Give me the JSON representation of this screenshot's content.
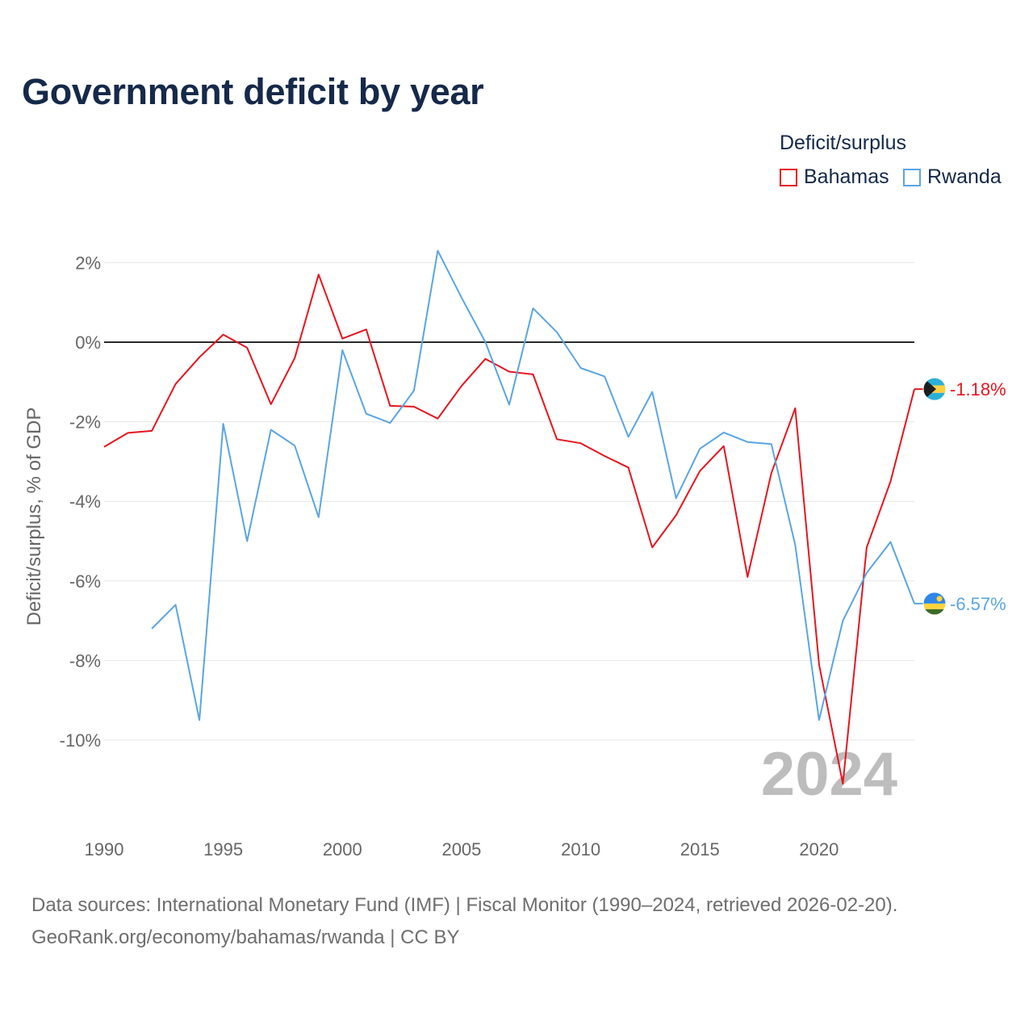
{
  "chart_data": {
    "type": "line",
    "title": "Government deficit by year",
    "xlabel": "",
    "ylabel": "Deficit/surplus, % of GDP",
    "xlim": [
      1990,
      2024
    ],
    "ylim": [
      -12,
      3
    ],
    "x_ticks": [
      1990,
      1995,
      2000,
      2005,
      2010,
      2015,
      2020
    ],
    "x_tick_labels": [
      "1990",
      "1995",
      "2000",
      "2005",
      "2010",
      "2015",
      "2020"
    ],
    "y_ticks": [
      2,
      0,
      -2,
      -4,
      -6,
      -8,
      -10
    ],
    "y_tick_labels": [
      "2%",
      "0%",
      "-2%",
      "-4%",
      "-6%",
      "-8%",
      "-10%"
    ],
    "legend_title": "Deficit/surplus",
    "legend_position": "top-right",
    "year_label": "2024",
    "series": [
      {
        "name": "Bahamas",
        "color": "#e8141e",
        "end_label": "-1.18%",
        "x": [
          1990,
          1991,
          1992,
          1993,
          1994,
          1995,
          1996,
          1997,
          1998,
          1999,
          2000,
          2001,
          2002,
          2003,
          2004,
          2005,
          2006,
          2007,
          2008,
          2009,
          2010,
          2011,
          2012,
          2013,
          2014,
          2015,
          2016,
          2017,
          2018,
          2019,
          2020,
          2021,
          2022,
          2023,
          2024
        ],
        "values": [
          -2.63,
          -2.28,
          -2.23,
          -1.05,
          -0.38,
          0.19,
          -0.14,
          -1.56,
          -0.4,
          1.7,
          0.09,
          0.32,
          -1.6,
          -1.62,
          -1.92,
          -1.1,
          -0.42,
          -0.74,
          -0.81,
          -2.44,
          -2.54,
          -2.86,
          -3.15,
          -5.16,
          -4.35,
          -3.24,
          -2.61,
          -5.9,
          -3.29,
          -1.66,
          -8.1,
          -11.1,
          -5.16,
          -3.5,
          -1.18
        ]
      },
      {
        "name": "Rwanda",
        "color": "#5aa5e5",
        "end_label": "-6.57%",
        "x": [
          1992,
          1993,
          1994,
          1995,
          1996,
          1997,
          1998,
          1999,
          2000,
          2001,
          2002,
          2003,
          2004,
          2005,
          2006,
          2007,
          2008,
          2009,
          2010,
          2011,
          2012,
          2013,
          2014,
          2015,
          2016,
          2017,
          2018,
          2019,
          2020,
          2021,
          2022,
          2023,
          2024
        ],
        "values": [
          -7.2,
          -6.6,
          -9.5,
          -2.05,
          -5,
          -2.2,
          -2.6,
          -4.4,
          -0.2,
          -1.8,
          -2.03,
          -1.22,
          2.3,
          1.12,
          0,
          -1.57,
          0.85,
          0.25,
          -0.65,
          -0.86,
          -2.38,
          -1.25,
          -3.92,
          -2.68,
          -2.27,
          -2.51,
          -2.56,
          -5.1,
          -9.5,
          -7.0,
          -5.8,
          -5.02,
          -6.57
        ]
      }
    ],
    "sources": "Data sources: International Monetary Fund (IMF) | Fiscal Monitor (1990–2024, retrieved 2026-02-20).",
    "credit": "GeoRank.org/economy/bahamas/rwanda | CC BY"
  },
  "flags": {
    "bahamas": {
      "colors": [
        "#1e1e1e",
        "#ffd040",
        "#2bb0d8"
      ]
    },
    "rwanda": {
      "colors": [
        "#2f86e8",
        "#ffd43d",
        "#3f6a27"
      ]
    }
  }
}
